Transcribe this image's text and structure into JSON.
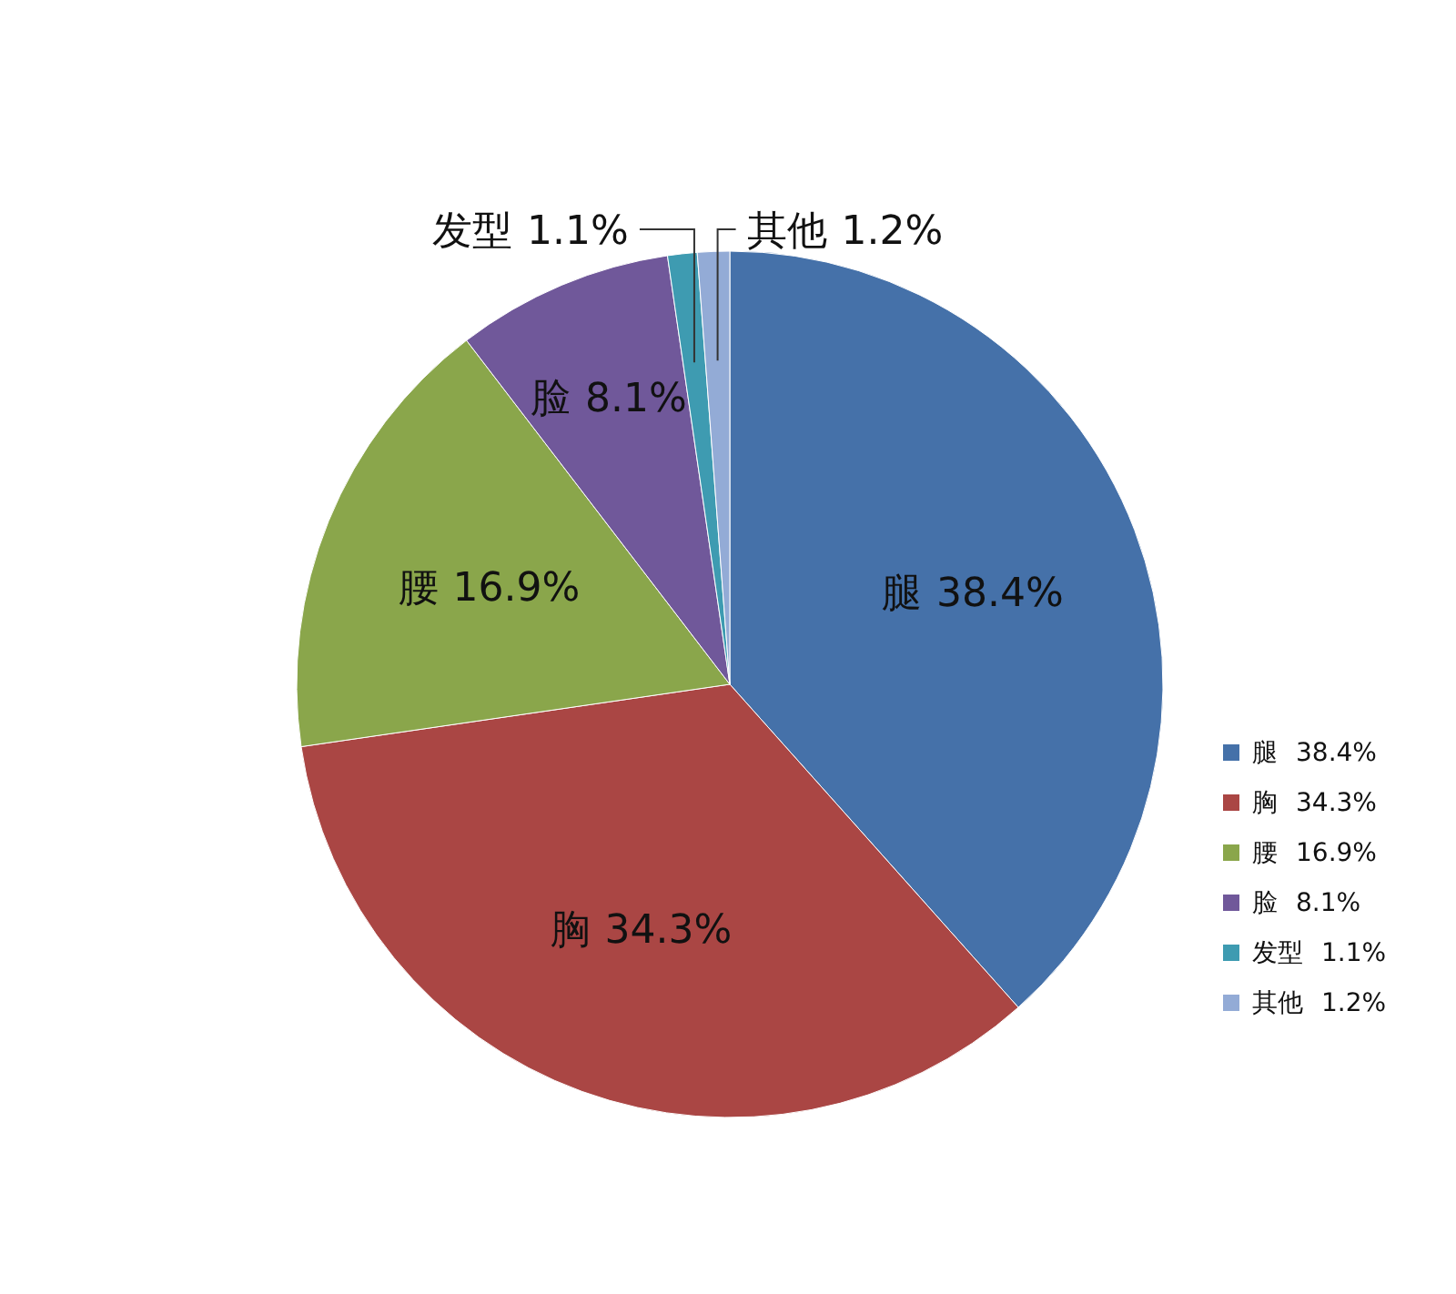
{
  "chart_data": {
    "type": "pie",
    "categories": [
      "腿",
      "胸",
      "腰",
      "脸",
      "发型",
      "其他"
    ],
    "values": [
      38.4,
      34.3,
      16.9,
      8.1,
      1.1,
      1.2
    ],
    "value_labels": [
      "38.4%",
      "34.3%",
      "16.9%",
      "8.1%",
      "1.1%",
      "1.2%"
    ],
    "colors": [
      "#4571a9",
      "#aa4644",
      "#8aa64b",
      "#70589a",
      "#3e9bb1",
      "#93abd6"
    ],
    "legend": "bottom right"
  }
}
